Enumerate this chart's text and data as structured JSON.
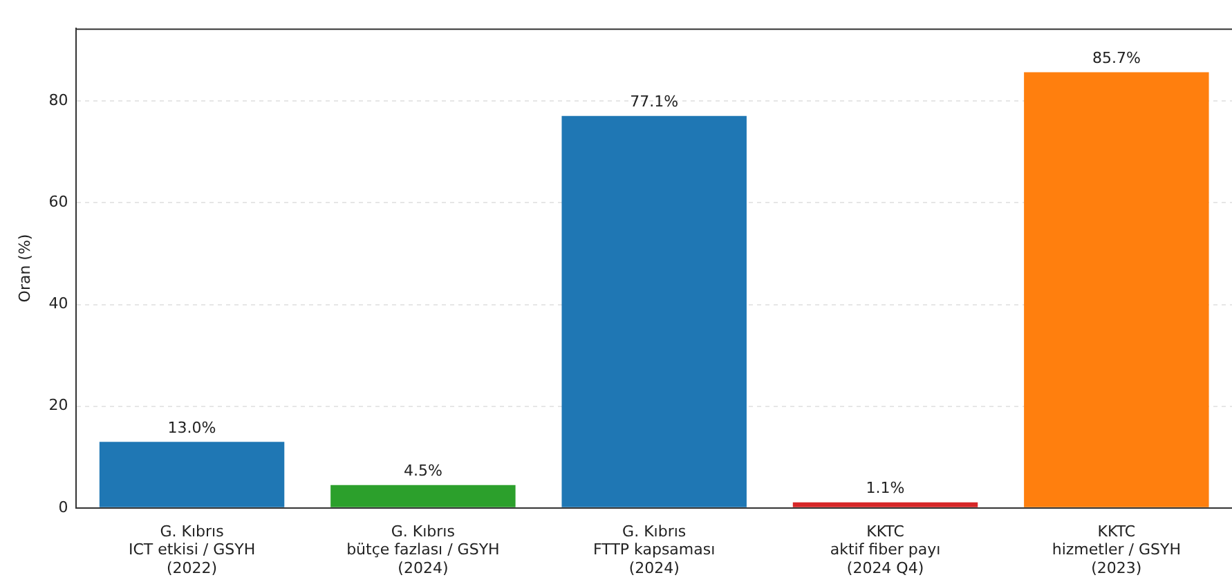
{
  "chart_data": {
    "type": "bar",
    "ylabel": "Oran (%)",
    "categories": [
      "G. Kıbrıs\nICT etkisi / GSYH\n(2022)",
      "G. Kıbrıs\nbütçe fazlası / GSYH\n(2024)",
      "G. Kıbrıs\nFTTP kapsaması\n(2024)",
      "KKTC\naktif fiber payı\n(2024 Q4)",
      "KKTC\nhizmetler / GSYH\n(2023)"
    ],
    "values": [
      13.0,
      4.5,
      77.1,
      1.1,
      85.7
    ],
    "colors": [
      "#1f77b4",
      "#2ca02c",
      "#1f77b4",
      "#d62728",
      "#ff7f0e"
    ],
    "value_labels": [
      "13.0%",
      "4.5%",
      "77.1%",
      "1.1%",
      "85.7%"
    ],
    "ylim": [
      0,
      94.3
    ],
    "yticks": [
      0,
      20,
      40,
      60,
      80
    ],
    "grid": "y",
    "legend": false
  }
}
